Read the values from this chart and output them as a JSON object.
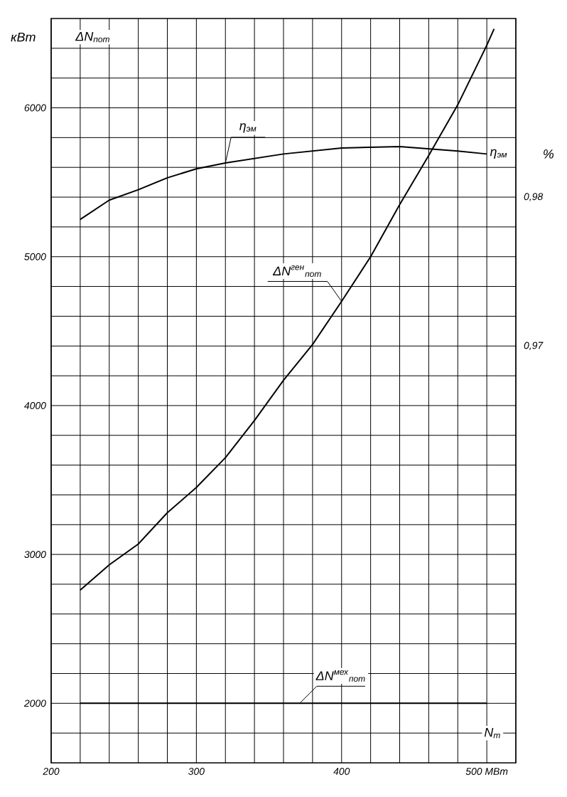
{
  "chart_data": {
    "type": "line",
    "ylabel": "кВт",
    "y2label": "%",
    "xlabel": "N$_{т}$",
    "annotations": [
      "ΔN$_{пот}$",
      "η$_{эм}$"
    ],
    "xlim": [
      200,
      520
    ],
    "ylim": [
      1600,
      6600
    ],
    "y2lim": [
      0.942,
      0.992
    ],
    "xticks": [
      200,
      {
        "value": 220,
        "label": null
      },
      {
        "value": 240,
        "label": null
      },
      {
        "value": 260,
        "label": null
      },
      {
        "value": 280,
        "label": null
      },
      300,
      {
        "value": 320,
        "label": null
      },
      {
        "value": 340,
        "label": null
      },
      {
        "value": 360,
        "label": null
      },
      {
        "value": 380,
        "label": null
      },
      400,
      {
        "value": 420,
        "label": null
      },
      {
        "value": 440,
        "label": null
      },
      {
        "value": 460,
        "label": null
      },
      {
        "value": 480,
        "label": null
      },
      {
        "value": 500,
        "label": "500 МВт"
      }
    ],
    "yticks": [
      {
        "value": 1800,
        "label": null
      },
      2000,
      {
        "value": 2200,
        "label": null
      },
      {
        "value": 2400,
        "label": null
      },
      {
        "value": 2600,
        "label": null
      },
      {
        "value": 2800,
        "label": null
      },
      3000,
      {
        "value": 3200,
        "label": null
      },
      {
        "value": 3400,
        "label": null
      },
      {
        "value": 3600,
        "label": null
      },
      {
        "value": 3800,
        "label": null
      },
      4000,
      {
        "value": 4200,
        "label": null
      },
      {
        "value": 4400,
        "label": null
      },
      {
        "value": 4600,
        "label": null
      },
      {
        "value": 4800,
        "label": null
      },
      5000,
      {
        "value": 5200,
        "label": null
      },
      {
        "value": 5400,
        "label": null
      },
      {
        "value": 5600,
        "label": null
      },
      {
        "value": 5800,
        "label": null
      },
      6000,
      {
        "value": 6200,
        "label": null
      },
      {
        "value": 6400,
        "label": null
      }
    ],
    "y2ticks": [
      {
        "value": 0.97,
        "label": "0,97"
      },
      {
        "value": 0.98,
        "label": "0,98"
      }
    ],
    "grid": true,
    "marker": "none",
    "line_style": "solid",
    "series": [
      {
        "name": "η$_{эм}$",
        "color": "#000000",
        "axis": "y2",
        "x": [
          220,
          240,
          260,
          280,
          300,
          320,
          360,
          400,
          440,
          480,
          500
        ],
        "values": [
          0.9785,
          0.9798,
          0.9805,
          0.9813,
          0.9819,
          0.9823,
          0.9829,
          0.9833,
          0.9834,
          0.9831,
          0.9829
        ]
      },
      {
        "name": "ΔN$^{ген}$$_{пот}$",
        "color": "#000000",
        "x": [
          220,
          240,
          260,
          280,
          300,
          320,
          340,
          360,
          380,
          400,
          420,
          440,
          460,
          480,
          500,
          505
        ],
        "values": [
          2760,
          2930,
          3070,
          3280,
          3450,
          3650,
          3900,
          4170,
          4410,
          4700,
          5000,
          5350,
          5680,
          6020,
          6420,
          6530
        ]
      },
      {
        "name": "ΔN$^{мех}$$_{пот}$",
        "color": "#000000",
        "x": [
          220,
          500
        ],
        "values": [
          2000,
          2000
        ]
      }
    ]
  }
}
